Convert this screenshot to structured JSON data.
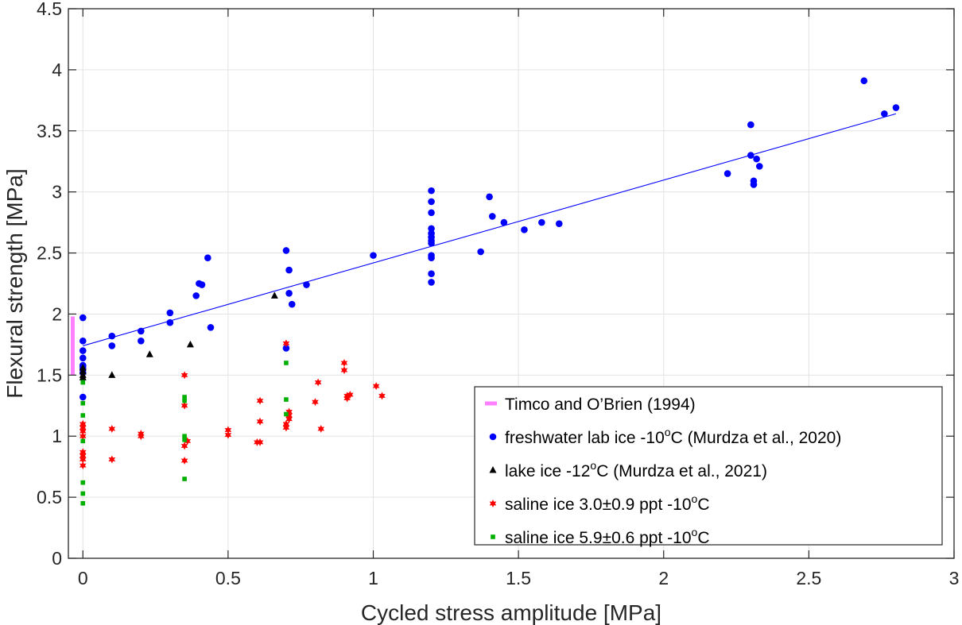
{
  "chart_data": {
    "type": "scatter",
    "xlabel": "Cycled stress amplitude [MPa]",
    "ylabel": "Flexural strength [MPa]",
    "xlim": [
      -0.05,
      3
    ],
    "ylim": [
      0,
      4.5
    ],
    "xticks": [
      0,
      0.5,
      1,
      1.5,
      2,
      2.5,
      3
    ],
    "xtick_labels": [
      "0",
      "0.5",
      "1",
      "1.5",
      "2",
      "2.5",
      "3"
    ],
    "yticks": [
      0,
      0.5,
      1,
      1.5,
      2,
      2.5,
      3,
      3.5,
      4,
      4.5
    ],
    "ytick_labels": [
      "0",
      "0.5",
      "1",
      "1.5",
      "2",
      "2.5",
      "3",
      "3.5",
      "4",
      "4.5"
    ],
    "grid": true,
    "legend_position": "bottom-right",
    "colors": {
      "timco": "#ff80ff",
      "freshwater": "#0000ff",
      "lake": "#000000",
      "saline3": "#ff0000",
      "saline6": "#00b000"
    },
    "series": [
      {
        "key": "timco",
        "name": "Timco and O’Brien (1994)",
        "legend_parts": [
          "Timco and O’Brien (1994)"
        ],
        "marker": "bar",
        "x": [
          -0.035,
          -0.035
        ],
        "y": [
          1.5,
          1.98
        ]
      },
      {
        "key": "freshwater",
        "name": "freshwater lab ice -10oC (Murdza et al., 2020)",
        "legend_parts": [
          "freshwater lab ice -10",
          "o",
          "C (Murdza et al., 2020)"
        ],
        "marker": "circle",
        "x": [
          0,
          0,
          0,
          0,
          0,
          0,
          0,
          0,
          0,
          0.1,
          0.1,
          0.2,
          0.2,
          0.3,
          0.3,
          0.39,
          0.4,
          0.41,
          0.43,
          0.44,
          0.7,
          0.7,
          0.71,
          0.71,
          0.72,
          0.77,
          1.0,
          1.2,
          1.2,
          1.2,
          1.2,
          1.2,
          1.2,
          1.2,
          1.2,
          1.2,
          1.2,
          1.2,
          1.2,
          1.37,
          1.4,
          1.41,
          1.45,
          1.52,
          1.58,
          1.64,
          2.22,
          2.3,
          2.3,
          2.31,
          2.31,
          2.32,
          2.33,
          2.69,
          2.76,
          2.8
        ],
        "y": [
          1.97,
          1.78,
          1.7,
          1.64,
          1.58,
          1.57,
          1.55,
          1.52,
          1.32,
          1.82,
          1.74,
          1.86,
          1.78,
          2.01,
          1.93,
          2.15,
          2.25,
          2.24,
          2.46,
          1.89,
          2.52,
          1.72,
          2.36,
          2.17,
          2.08,
          2.24,
          2.48,
          3.01,
          2.92,
          2.83,
          2.7,
          2.66,
          2.63,
          2.6,
          2.48,
          2.46,
          2.33,
          2.26,
          2.58,
          2.51,
          2.96,
          2.8,
          2.75,
          2.69,
          2.75,
          2.74,
          3.15,
          3.55,
          3.3,
          3.09,
          3.06,
          3.27,
          3.21,
          3.91,
          3.64,
          3.69
        ]
      },
      {
        "key": "lake",
        "name": "lake ice -12oC (Murdza et al., 2021)",
        "legend_parts": [
          "lake ice -12",
          "o",
          "C (Murdza et al., 2021)"
        ],
        "marker": "triangle",
        "x": [
          0,
          0,
          0,
          0,
          0.1,
          0.23,
          0.37,
          0.66
        ],
        "y": [
          1.56,
          1.53,
          1.5,
          1.48,
          1.5,
          1.67,
          1.75,
          2.15
        ]
      },
      {
        "key": "saline3",
        "name": "saline ice 3.0±0.9 ppt -10oC",
        "legend_parts": [
          "saline ice 3.0±0.9 ppt -10",
          "o",
          "C"
        ],
        "marker": "star",
        "x": [
          0,
          0,
          0,
          0,
          0,
          0,
          0,
          0,
          0.1,
          0.1,
          0.2,
          0.2,
          0.35,
          0.35,
          0.35,
          0.35,
          0.36,
          0.5,
          0.5,
          0.6,
          0.61,
          0.61,
          0.61,
          0.7,
          0.7,
          0.7,
          0.71,
          0.71,
          0.71,
          0.8,
          0.81,
          0.82,
          0.9,
          0.9,
          0.91,
          0.91,
          0.92,
          1.01,
          1.03
        ],
        "y": [
          1.1,
          1.07,
          1.04,
          1.0,
          0.87,
          0.84,
          0.81,
          0.76,
          1.06,
          0.81,
          1.02,
          1.0,
          1.5,
          1.25,
          0.92,
          0.8,
          0.96,
          1.05,
          1.01,
          0.95,
          0.95,
          1.12,
          1.29,
          1.76,
          1.1,
          1.07,
          1.2,
          1.17,
          1.14,
          1.28,
          1.44,
          1.06,
          1.6,
          1.54,
          1.31,
          1.33,
          1.34,
          1.41,
          1.33
        ]
      },
      {
        "key": "saline6",
        "name": "saline ice 5.9±0.6 ppt -10oC",
        "legend_parts": [
          "saline ice 5.9±0.6 ppt -10",
          "o",
          "C"
        ],
        "marker": "square",
        "x": [
          0,
          0,
          0,
          0,
          0,
          0,
          0,
          0.35,
          0.35,
          0.35,
          0.35,
          0.35,
          0.7,
          0.7,
          0.7
        ],
        "y": [
          1.44,
          1.27,
          1.17,
          0.96,
          0.62,
          0.53,
          0.45,
          1.32,
          1.29,
          1.0,
          0.97,
          0.65,
          1.6,
          1.3,
          1.18
        ]
      }
    ],
    "fit_line": {
      "key": "freshwater",
      "x": [
        0,
        2.8
      ],
      "y": [
        1.74,
        3.64
      ]
    }
  }
}
